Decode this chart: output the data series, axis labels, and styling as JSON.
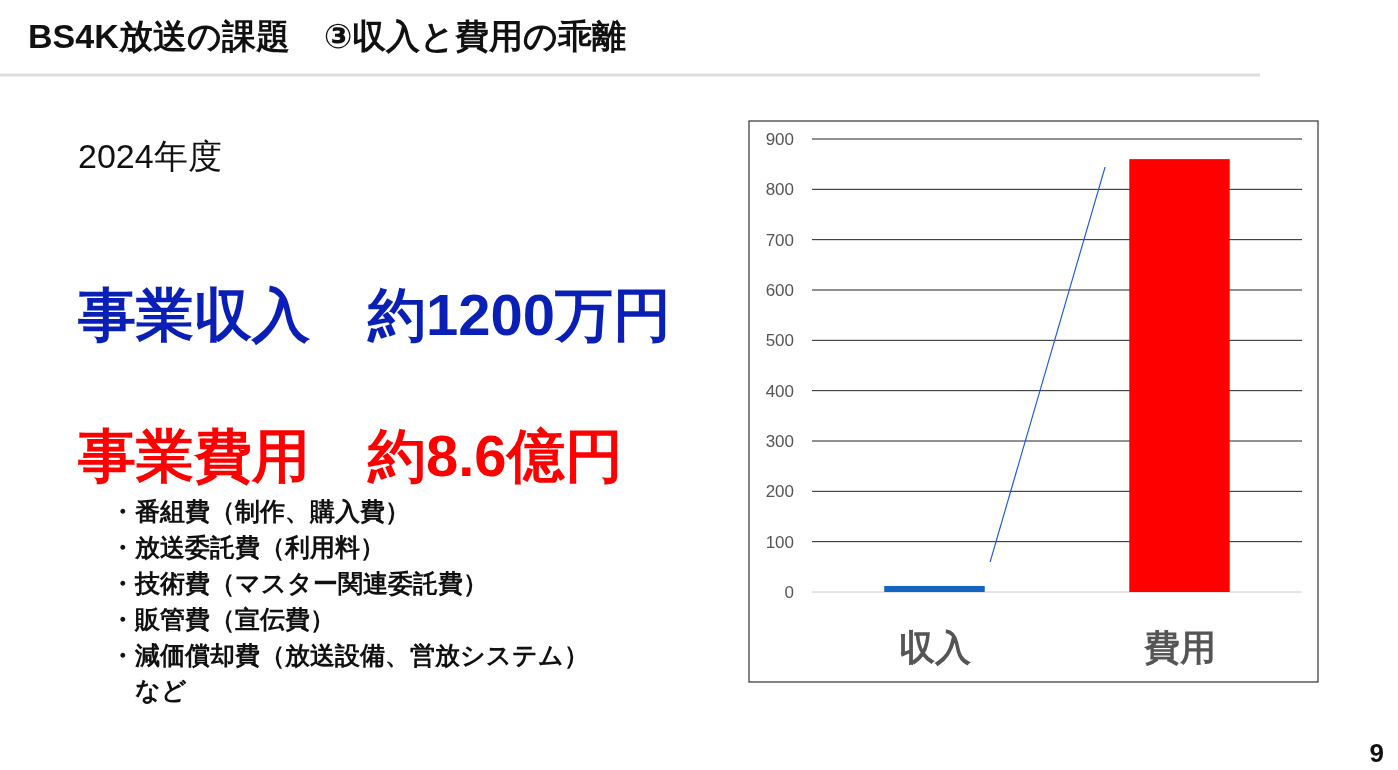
{
  "chart_data": {
    "type": "bar",
    "title": "BS4K放送の課題　③収入と費用の乖離",
    "categories": [
      "収入",
      "費用"
    ],
    "values": [
      12,
      860
    ],
    "colors": [
      "#1565c0",
      "#ff0000"
    ],
    "ylim": [
      0,
      900
    ],
    "yticks": [
      0,
      100,
      200,
      300,
      400,
      500,
      600,
      700,
      800,
      900
    ],
    "grid": "y",
    "annotations": [
      "2024年度",
      "事業収入　約1200万円",
      "事業費用　約8.6億円",
      "・番組費（制作、購入費）",
      "・放送委託費（利用料）",
      "・技術費（マスター関連委託費）",
      "・販管費（宣伝費）",
      "・減価償却費（放送設備、営放システム）",
      "　など",
      "9"
    ]
  }
}
